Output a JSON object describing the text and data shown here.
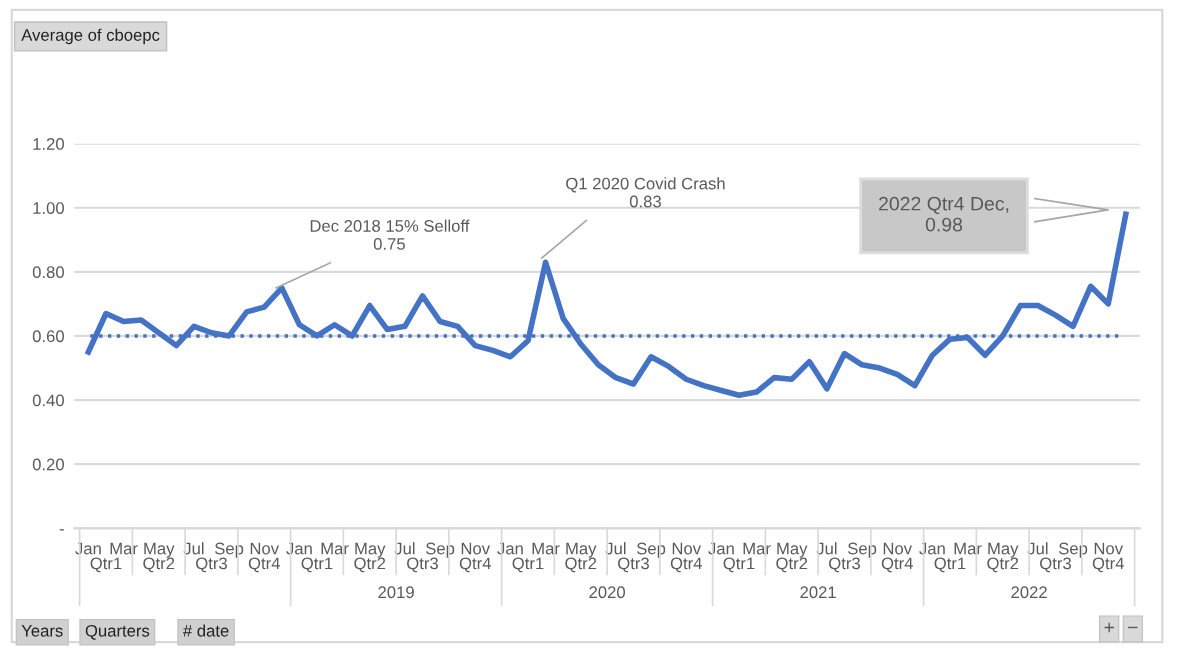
{
  "chart_data": {
    "type": "line",
    "title": "Average of cboepc",
    "categories": [
      "Jan",
      null,
      "Mar",
      null,
      "May",
      null,
      "Jul",
      null,
      "Sep",
      null,
      "Nov",
      null,
      "Jan",
      null,
      "Mar",
      null,
      "May",
      null,
      "Jul",
      null,
      "Sep",
      null,
      "Nov",
      null,
      "Jan",
      null,
      "Mar",
      null,
      "May",
      null,
      "Jul",
      null,
      "Sep",
      null,
      "Nov",
      null,
      "Jan",
      null,
      "Mar",
      null,
      "May",
      null,
      "Jul",
      null,
      "Sep",
      null,
      "Nov",
      null,
      "Jan",
      null,
      "Mar",
      null,
      "May",
      null,
      "Jul",
      null,
      "Sep",
      null,
      "Nov",
      null
    ],
    "series": [
      {
        "color": "#4472c4",
        "values": [
          0.55,
          0.67,
          0.645,
          0.65,
          0.61,
          0.57,
          0.63,
          0.61,
          0.6,
          0.675,
          0.69,
          0.75,
          0.635,
          0.6,
          0.635,
          0.6,
          0.695,
          0.62,
          0.63,
          0.725,
          0.645,
          0.63,
          0.57,
          0.555,
          0.535,
          0.585,
          0.83,
          0.655,
          0.575,
          0.51,
          0.47,
          0.45,
          0.535,
          0.505,
          0.465,
          0.445,
          0.43,
          0.415,
          0.425,
          0.47,
          0.465,
          0.52,
          0.435,
          0.545,
          0.51,
          0.5,
          0.48,
          0.445,
          0.54,
          0.59,
          0.595,
          0.54,
          0.6,
          0.695,
          0.695,
          0.665,
          0.63,
          0.755,
          0.7,
          0.98
        ]
      }
    ],
    "ylim": [
      0,
      1.2
    ],
    "yticks": [
      {
        "value": 0,
        "label": "-"
      },
      {
        "value": 0.2,
        "label": "0.20"
      },
      {
        "value": 0.4,
        "label": "0.40"
      },
      {
        "value": 0.6,
        "label": "0.60"
      },
      {
        "value": 0.8,
        "label": "0.80"
      },
      {
        "value": 1.0,
        "label": "1.00"
      },
      {
        "value": 1.2,
        "label": "1.20"
      }
    ],
    "grid": "y",
    "legend": false,
    "marker": "none",
    "line_style": "solid",
    "ref_lines": [
      {
        "axis": "y",
        "value": 0.6,
        "color": "#4472c4",
        "line_style": "dotted"
      }
    ],
    "annotations": [
      "Dec 2018 15% Selloff\n0.75",
      "Q1 2020 Covid Crash\n0.83",
      "2022 Qtr4 Dec,\n0.98",
      "Qtr1",
      "Qtr2",
      "Qtr3",
      "Qtr4",
      "Qtr1",
      "Qtr2",
      "Qtr3",
      "Qtr4",
      "Qtr1",
      "Qtr2",
      "Qtr3",
      "Qtr4",
      "Qtr1",
      "Qtr2",
      "Qtr3",
      "Qtr4",
      "Qtr1",
      "Qtr2",
      "Qtr3",
      "Qtr4",
      "2019",
      "2020",
      "2021",
      "2022",
      "Years",
      "Quarters",
      "# date",
      "+",
      "−"
    ]
  }
}
